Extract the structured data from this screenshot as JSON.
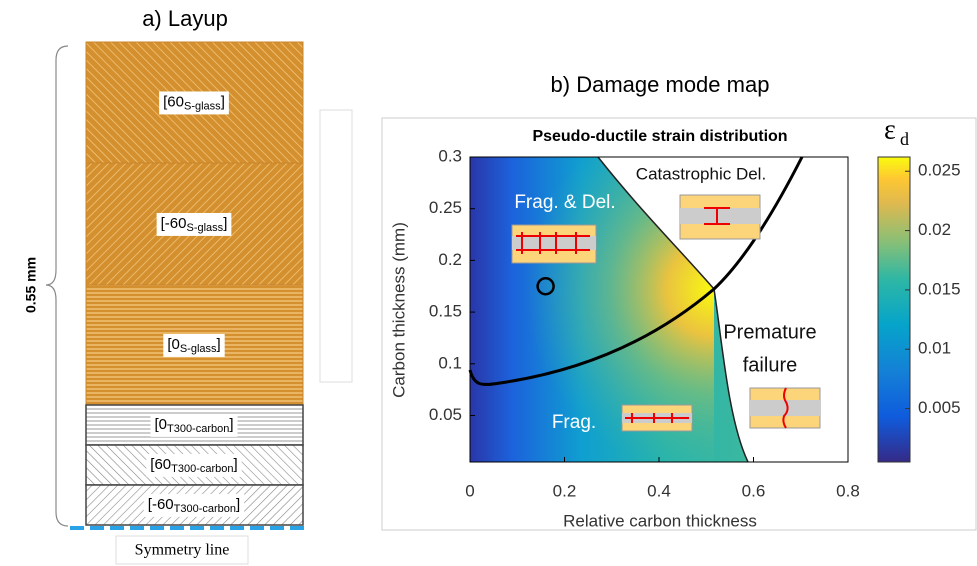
{
  "layup": {
    "title": "a) Layup",
    "thickness_label": "0.55 mm",
    "plies": [
      {
        "angle": "[60",
        "material": "S-glass",
        "close": "]"
      },
      {
        "angle": "[-60",
        "material": "S-glass",
        "close": "]"
      },
      {
        "angle": "[0",
        "material": "S-glass",
        "close": "]"
      },
      {
        "angle": "[0",
        "material": "T300-carbon",
        "close": "]"
      },
      {
        "angle": "[60",
        "material": "T300-carbon",
        "close": "]"
      },
      {
        "angle": "[-60",
        "material": "T300-carbon",
        "close": "]"
      }
    ],
    "symmetry_label": "Symmetry line"
  },
  "chart_data": {
    "type": "map",
    "panel_title": "b) Damage mode map",
    "title": "Pseudo-ductile strain distribution",
    "x_label": "Relative carbon thickness",
    "y_label": "Carbon thickness (mm)",
    "xlim": [
      0,
      0.8
    ],
    "xticks": [
      0,
      0.2,
      0.4,
      0.6,
      0.8
    ],
    "ylim": [
      0.005,
      0.3
    ],
    "yticks": [
      0.05,
      0.1,
      0.15,
      0.2,
      0.25,
      0.3
    ],
    "colorbar_label": "ε",
    "colorbar_label_subscript": "d",
    "clim": [
      0.0005,
      0.0262
    ],
    "cticks": [
      0.005,
      0.01,
      0.015,
      0.02,
      0.025
    ],
    "annotations": [
      "Frag. & Del.",
      "Catastrophic Del.",
      "Premature",
      "failure",
      "Frag."
    ],
    "marker": {
      "x": 0.16,
      "y": 0.175
    }
  }
}
